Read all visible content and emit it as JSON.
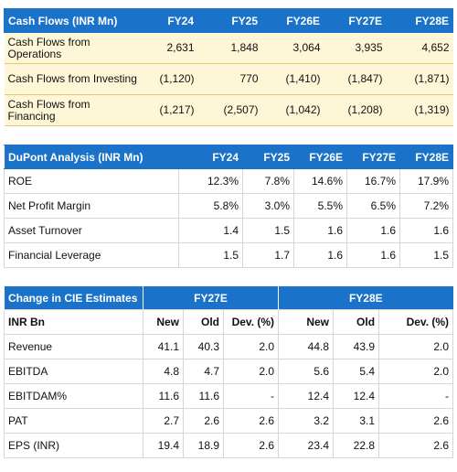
{
  "cashflows": {
    "header": [
      "Cash Flows (INR Mn)",
      "FY24",
      "FY25",
      "FY26E",
      "FY27E",
      "FY28E"
    ],
    "rows": [
      {
        "label": "Cash Flows from Operations",
        "values": [
          "2,631",
          "1,848",
          "3,064",
          "3,935",
          "4,652"
        ]
      },
      {
        "label": "Cash Flows from Investing",
        "values": [
          "(1,120)",
          "770",
          "(1,410)",
          "(1,847)",
          "(1,871)"
        ]
      },
      {
        "label": "Cash Flows from Financing",
        "values": [
          "(1,217)",
          "(2,507)",
          "(1,042)",
          "(1,208)",
          "(1,319)"
        ]
      }
    ]
  },
  "dupont": {
    "header": [
      "DuPont Analysis (INR Mn)",
      "FY24",
      "FY25",
      "FY26E",
      "FY27E",
      "FY28E"
    ],
    "rows": [
      {
        "label": "ROE",
        "values": [
          "12.3%",
          "7.8%",
          "14.6%",
          "16.7%",
          "17.9%"
        ]
      },
      {
        "label": "Net Profit Margin",
        "values": [
          "5.8%",
          "3.0%",
          "5.5%",
          "6.5%",
          "7.2%"
        ]
      },
      {
        "label": "Asset Turnover",
        "values": [
          "1.4",
          "1.5",
          "1.6",
          "1.6",
          "1.6"
        ]
      },
      {
        "label": "Financial Leverage",
        "values": [
          "1.5",
          "1.7",
          "1.6",
          "1.6",
          "1.5"
        ]
      }
    ]
  },
  "estimates": {
    "title": "Change in CIE Estimates",
    "groups": [
      "FY27E",
      "FY28E"
    ],
    "subheader": [
      "INR Bn",
      "New",
      "Old",
      "Dev. (%)",
      "New",
      "Old",
      "Dev. (%)"
    ],
    "rows": [
      {
        "label": "Revenue",
        "values": [
          "41.1",
          "40.3",
          "2.0",
          "44.8",
          "43.9",
          "2.0"
        ]
      },
      {
        "label": "EBITDA",
        "values": [
          "4.8",
          "4.7",
          "2.0",
          "5.6",
          "5.4",
          "2.0"
        ]
      },
      {
        "label": "EBITDAM%",
        "values": [
          "11.6",
          "11.6",
          "-",
          "12.4",
          "12.4",
          "-"
        ]
      },
      {
        "label": "PAT",
        "values": [
          "2.7",
          "2.6",
          "2.6",
          "3.2",
          "3.1",
          "2.6"
        ]
      },
      {
        "label": "EPS (INR)",
        "values": [
          "19.4",
          "18.9",
          "2.6",
          "23.4",
          "22.8",
          "2.6"
        ]
      }
    ]
  }
}
